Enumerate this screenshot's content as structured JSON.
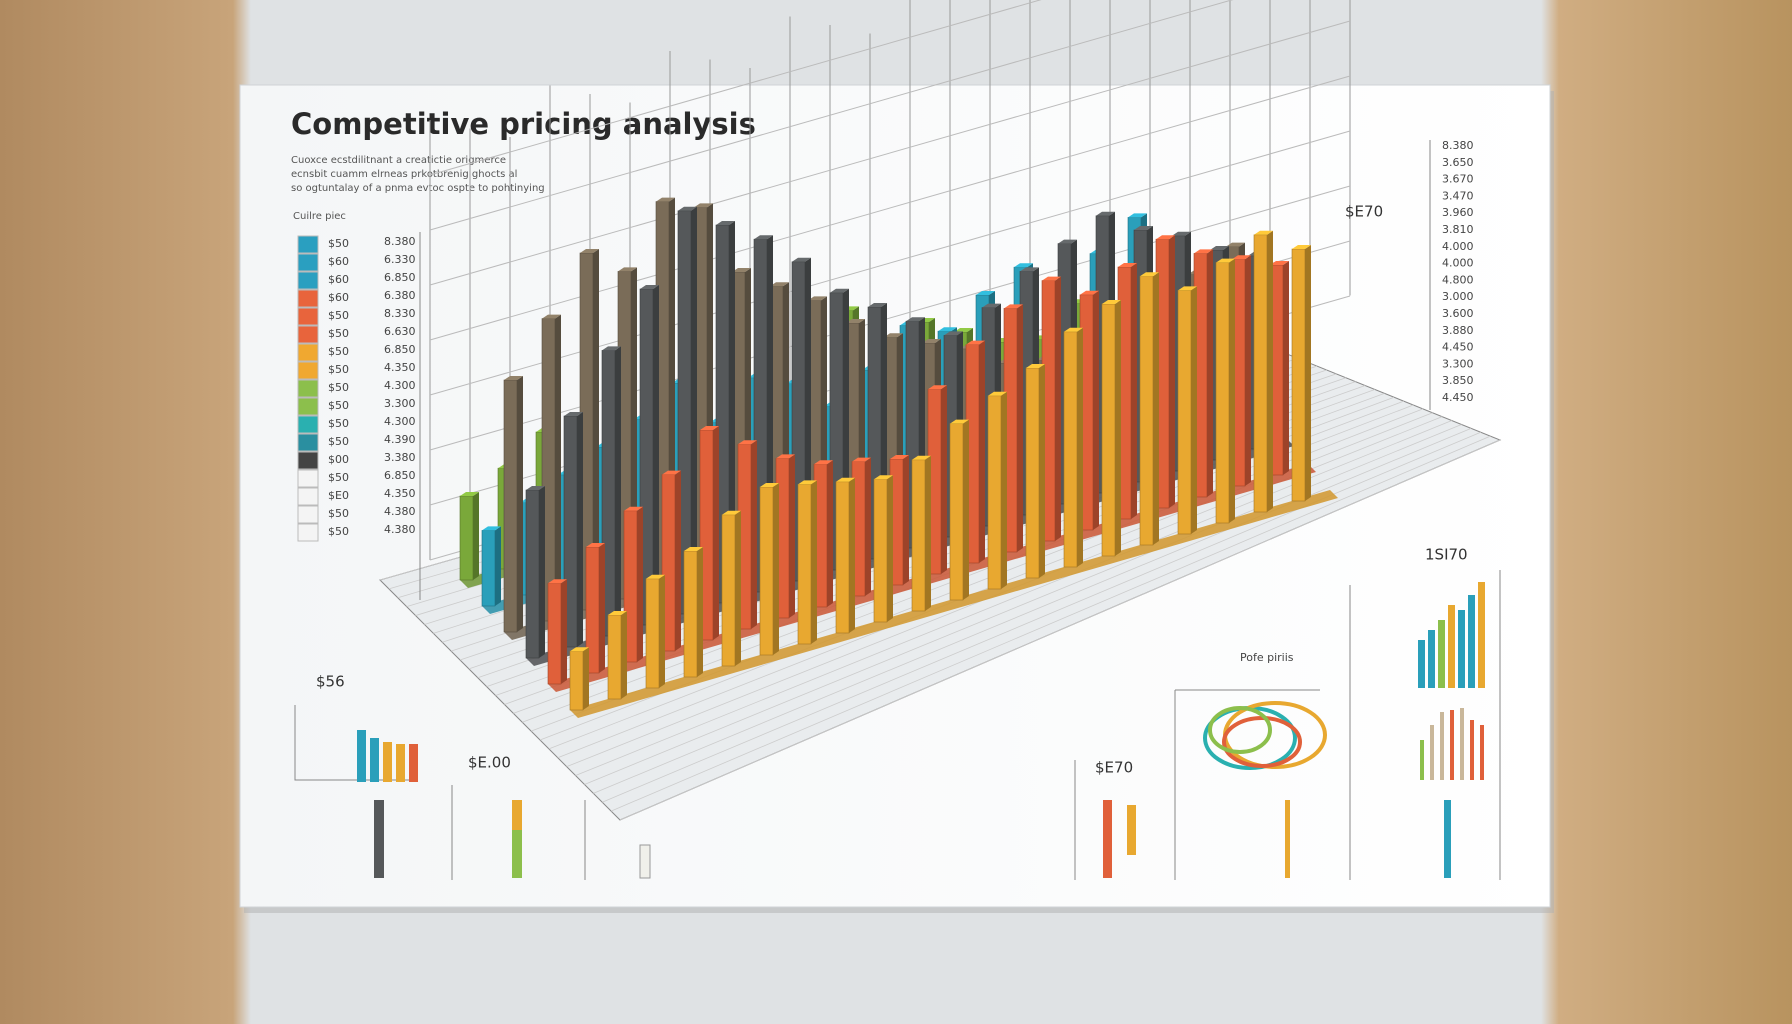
{
  "chart_data": {
    "type": "bar3d",
    "title": "Competitive pricing analysis",
    "subtitle_lines": [
      "Cuoxce ecstdilitnant a creatictie origmerce",
      "ecnsbit cuamm elrneas prkotbrenig ghocts al",
      "so ogtuntalay of a pnma evtoc ospte to pohtinying"
    ],
    "legend_title": "Cuilre piec",
    "legend_colors": [
      "#2a9fc0",
      "#2a9fc0",
      "#2a9fc0",
      "#e8643c",
      "#e8643c",
      "#e8643c",
      "#f0a830",
      "#f0a830",
      "#8cbf4c",
      "#8cbf4c",
      "#2ab0b0",
      "#2a8fa0",
      "#444444",
      "#f4f4f4",
      "#f4f4f4",
      "#f4f4f4",
      "#f4f4f4"
    ],
    "legend_labels": [
      "$50",
      "$60",
      "$60",
      "$60",
      "$50",
      "$50",
      "$50",
      "$50",
      "$50",
      "$50",
      "$50",
      "$50",
      "$00",
      "$50",
      "$E0",
      "$50",
      "$50"
    ],
    "left_scale_labels": [
      "8.380",
      "6.330",
      "6.850",
      "6.380",
      "8.330",
      "6.630",
      "6.850",
      "4.350",
      "4.300",
      "3.300",
      "4.300",
      "4.390",
      "3.380",
      "6.850",
      "4.350",
      "4.380",
      "4.380"
    ],
    "right_scale_labels": [
      "8.380",
      "3.650",
      "3.670",
      "3.470",
      "3.960",
      "3.810",
      "4.000",
      "4.000",
      "4.800",
      "3.000",
      "3.600",
      "3.880",
      "4.450",
      "3.300",
      "3.850",
      "4.450"
    ],
    "annotations": [
      "$E70",
      "$56",
      "$E.00",
      "$E70",
      "1SI70",
      "Pofe piriis"
    ],
    "ylim": [
      0,
      100
    ],
    "series": [
      {
        "color": "#7aa83a",
        "values": [
          20,
          24,
          30,
          22,
          34,
          28,
          40,
          26,
          46,
          30,
          38,
          22,
          30,
          25,
          20,
          18,
          24,
          20,
          16,
          14
        ]
      },
      {
        "color": "#2a9fba",
        "values": [
          18,
          22,
          26,
          30,
          34,
          40,
          28,
          36,
          32,
          24,
          30,
          38,
          34,
          40,
          44,
          36,
          42,
          48,
          38,
          30
        ]
      },
      {
        "color": "#7a6c58",
        "values": [
          60,
          72,
          85,
          78,
          92,
          88,
          70,
          64,
          58,
          50,
          44,
          40,
          36,
          30,
          28,
          26,
          30,
          34,
          38,
          42
        ]
      },
      {
        "color": "#55585a",
        "values": [
          40,
          55,
          68,
          80,
          96,
          90,
          84,
          76,
          66,
          60,
          54,
          48,
          52,
          58,
          62,
          66,
          60,
          56,
          50,
          46
        ]
      },
      {
        "color": "#e0603a",
        "values": [
          24,
          30,
          36,
          42,
          50,
          44,
          38,
          34,
          32,
          30,
          44,
          52,
          58,
          62,
          56,
          60,
          64,
          58,
          54,
          50
        ]
      },
      {
        "color": "#e8a830",
        "values": [
          14,
          20,
          26,
          30,
          36,
          40,
          38,
          36,
          34,
          36,
          42,
          46,
          50,
          56,
          60,
          64,
          58,
          62,
          66,
          60
        ]
      }
    ]
  }
}
